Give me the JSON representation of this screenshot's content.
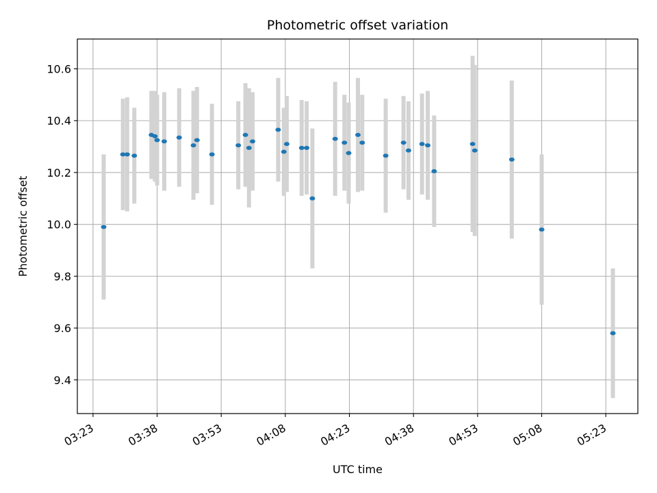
{
  "chart_data": {
    "type": "scatter",
    "title": "Photometric offset variation",
    "xlabel": "UTC time",
    "ylabel": "Photometric offset",
    "x_ticks": [
      "03:23",
      "03:38",
      "03:53",
      "04:08",
      "04:23",
      "04:38",
      "04:53",
      "05:08",
      "05:23"
    ],
    "y_ticks": [
      "9.4",
      "9.6",
      "9.8",
      "10.0",
      "10.2",
      "10.4",
      "10.6"
    ],
    "xlim": [
      "03:19:20",
      "05:30:30"
    ],
    "ylim": [
      9.27,
      10.715
    ],
    "grid": true,
    "colors": {
      "points": "#1f77b4",
      "errorbars": "#d3d3d3",
      "grid": "#b0b0b0"
    },
    "points": [
      {
        "x": "03:25:30",
        "y": 9.99,
        "yerr": 0.28
      },
      {
        "x": "03:30:00",
        "y": 10.27,
        "yerr": 0.215
      },
      {
        "x": "03:31:00",
        "y": 10.27,
        "yerr": 0.22
      },
      {
        "x": "03:32:40",
        "y": 10.265,
        "yerr": 0.185
      },
      {
        "x": "03:36:40",
        "y": 10.345,
        "yerr": 0.17
      },
      {
        "x": "03:37:30",
        "y": 10.34,
        "yerr": 0.175
      },
      {
        "x": "03:38:00",
        "y": 10.325,
        "yerr": 0.175
      },
      {
        "x": "03:39:40",
        "y": 10.32,
        "yerr": 0.19
      },
      {
        "x": "03:43:10",
        "y": 10.335,
        "yerr": 0.19
      },
      {
        "x": "03:46:30",
        "y": 10.305,
        "yerr": 0.21
      },
      {
        "x": "03:47:20",
        "y": 10.325,
        "yerr": 0.205
      },
      {
        "x": "03:50:50",
        "y": 10.27,
        "yerr": 0.195
      },
      {
        "x": "03:57:00",
        "y": 10.305,
        "yerr": 0.17
      },
      {
        "x": "03:58:40",
        "y": 10.345,
        "yerr": 0.2
      },
      {
        "x": "03:59:30",
        "y": 10.295,
        "yerr": 0.23
      },
      {
        "x": "04:00:20",
        "y": 10.32,
        "yerr": 0.19
      },
      {
        "x": "04:06:20",
        "y": 10.365,
        "yerr": 0.2
      },
      {
        "x": "04:07:40",
        "y": 10.28,
        "yerr": 0.17
      },
      {
        "x": "04:08:20",
        "y": 10.31,
        "yerr": 0.185
      },
      {
        "x": "04:11:50",
        "y": 10.295,
        "yerr": 0.185
      },
      {
        "x": "04:13:00",
        "y": 10.295,
        "yerr": 0.18
      },
      {
        "x": "04:14:20",
        "y": 10.1,
        "yerr": 0.27
      },
      {
        "x": "04:19:40",
        "y": 10.33,
        "yerr": 0.22
      },
      {
        "x": "04:21:50",
        "y": 10.315,
        "yerr": 0.185
      },
      {
        "x": "04:22:50",
        "y": 10.275,
        "yerr": 0.195
      },
      {
        "x": "04:25:00",
        "y": 10.345,
        "yerr": 0.22
      },
      {
        "x": "04:26:00",
        "y": 10.315,
        "yerr": 0.185
      },
      {
        "x": "04:31:30",
        "y": 10.265,
        "yerr": 0.22
      },
      {
        "x": "04:35:40",
        "y": 10.315,
        "yerr": 0.18
      },
      {
        "x": "04:36:50",
        "y": 10.285,
        "yerr": 0.19
      },
      {
        "x": "04:40:00",
        "y": 10.31,
        "yerr": 0.195
      },
      {
        "x": "04:41:20",
        "y": 10.305,
        "yerr": 0.21
      },
      {
        "x": "04:42:50",
        "y": 10.205,
        "yerr": 0.215
      },
      {
        "x": "04:51:50",
        "y": 10.31,
        "yerr": 0.34
      },
      {
        "x": "04:52:20",
        "y": 10.285,
        "yerr": 0.33
      },
      {
        "x": "05:01:00",
        "y": 10.25,
        "yerr": 0.305
      },
      {
        "x": "05:08:00",
        "y": 9.98,
        "yerr": 0.29
      },
      {
        "x": "05:24:40",
        "y": 9.58,
        "yerr": 0.25
      }
    ]
  }
}
